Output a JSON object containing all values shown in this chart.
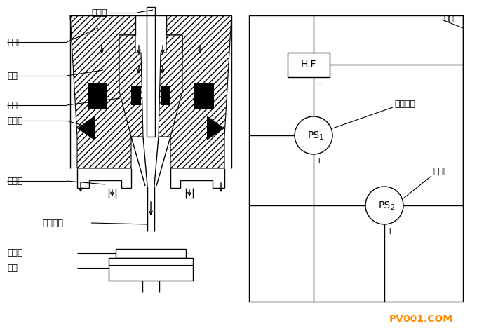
{
  "bg_color": "#ffffff",
  "line_color": "#000000",
  "label_color": "#000000",
  "watermark_color": "#FF8C00",
  "watermark_text": "PV001.COM",
  "labels": {
    "tungsten": "钨电极",
    "ion_gas": "离子气",
    "powder": "粉末",
    "nozzle": "喷嘴",
    "cooling": "冷却水",
    "shield_gas": "屏蔽气",
    "plasma": "等离子体",
    "spray_layer": "喷焊层",
    "substrate": "基材",
    "hf": "高频",
    "aux_power": "辅助电源",
    "main_power": "主电源"
  }
}
